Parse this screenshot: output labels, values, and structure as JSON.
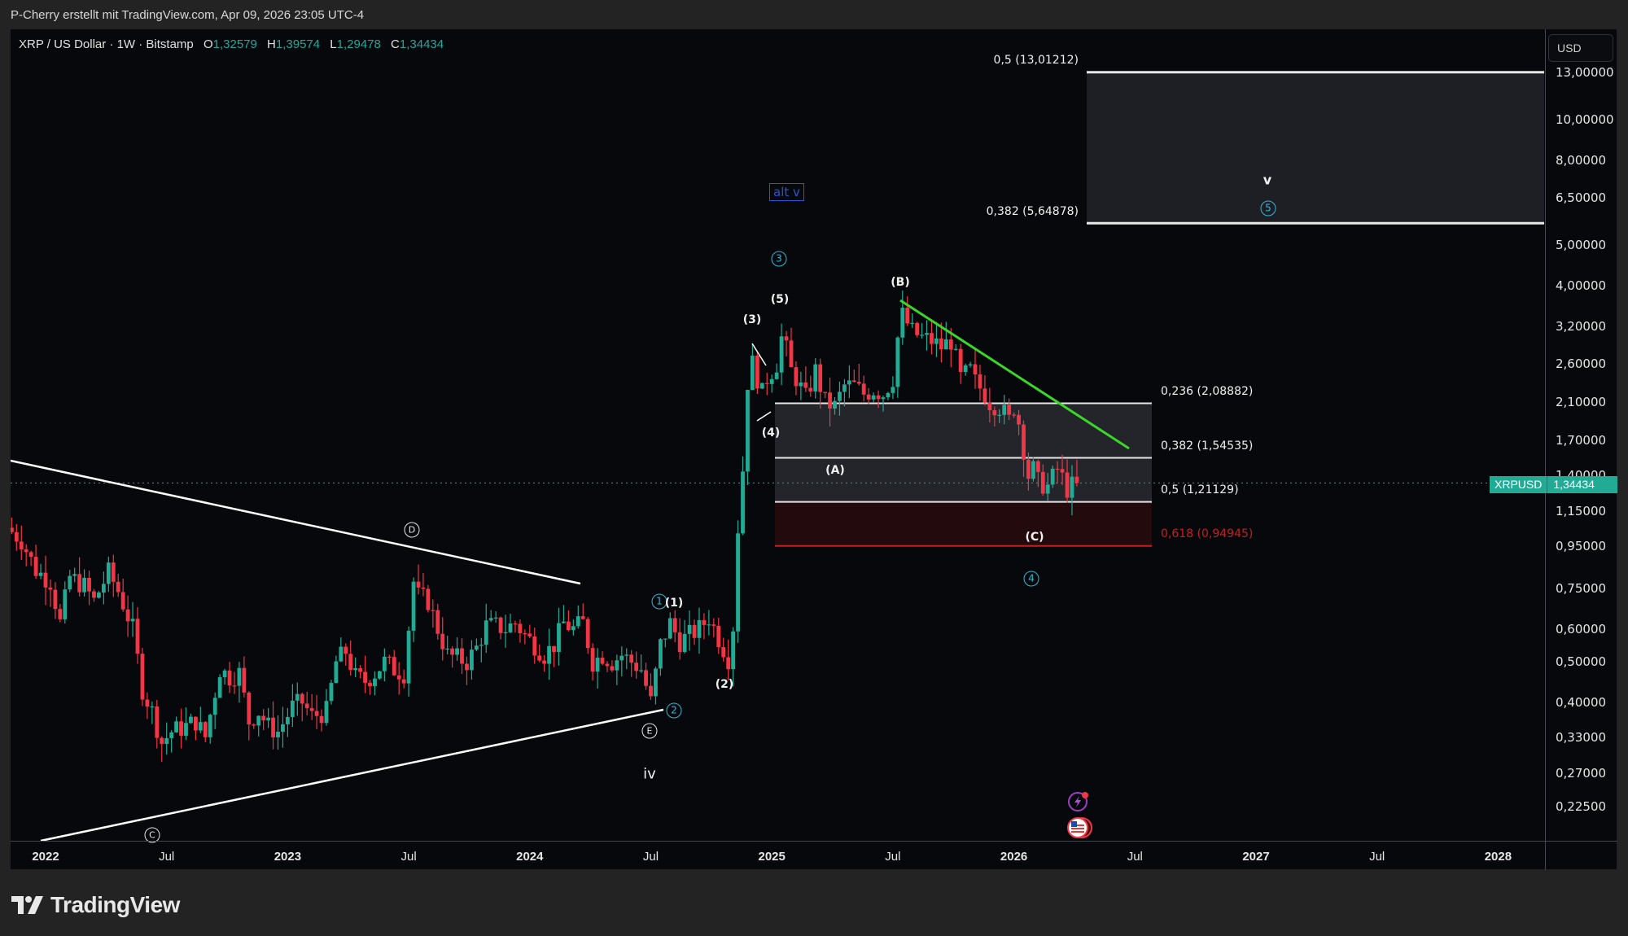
{
  "header": {
    "credit": "P-Cherry erstellt mit TradingView.com, Apr 09, 2026 23:05 UTC-4"
  },
  "legend": {
    "symbol": "XRP / US Dollar · 1W · Bitstamp",
    "o_label": "O",
    "o": "1,32579",
    "h_label": "H",
    "h": "1,39574",
    "l_label": "L",
    "l": "1,29478",
    "c_label": "C",
    "c": "1,34434"
  },
  "currency_button": "USD",
  "price_tag": {
    "symbol": "XRPUSD",
    "value": "1,34434"
  },
  "brand": {
    "name": "TradingView"
  },
  "colors": {
    "up": "#22ab94",
    "down": "#f23645",
    "fib_line": "#e8e8e8",
    "fib_fill": "#2a2b30",
    "fib_red": "#c4201f",
    "trend_green": "#3ad629",
    "wave_cyan": "#31b8d6",
    "alt_blue": "#2a55d8"
  },
  "chart_data": {
    "type": "candlestick",
    "title": "XRP / US Dollar · 1W · Bitstamp",
    "scale": "log",
    "ylim": [
      0.205,
      15.5
    ],
    "y_ticks": [
      "13,00000",
      "10,00000",
      "8,00000",
      "6,50000",
      "5,00000",
      "4,00000",
      "3,20000",
      "2,60000",
      "2,10000",
      "1,70000",
      "1,40000",
      "1,15000",
      "0,95000",
      "0,75000",
      "0,60000",
      "0,50000",
      "0,40000",
      "0,33000",
      "0,27000",
      "0,22500"
    ],
    "y_tick_values": [
      13,
      10,
      8,
      6.5,
      5,
      4,
      3.2,
      2.6,
      2.1,
      1.7,
      1.4,
      1.15,
      0.95,
      0.75,
      0.6,
      0.5,
      0.4,
      0.33,
      0.27,
      0.225
    ],
    "x_ticks": [
      {
        "label": "2022",
        "t": 2022.0,
        "year": true
      },
      {
        "label": "Jul",
        "t": 2022.5,
        "year": false
      },
      {
        "label": "2023",
        "t": 2023.0,
        "year": true
      },
      {
        "label": "Jul",
        "t": 2023.5,
        "year": false
      },
      {
        "label": "2024",
        "t": 2024.0,
        "year": true
      },
      {
        "label": "Jul",
        "t": 2024.5,
        "year": false
      },
      {
        "label": "2025",
        "t": 2025.0,
        "year": true
      },
      {
        "label": "Jul",
        "t": 2025.5,
        "year": false
      },
      {
        "label": "2026",
        "t": 2026.0,
        "year": true
      },
      {
        "label": "Jul",
        "t": 2026.5,
        "year": false
      },
      {
        "label": "2027",
        "t": 2027.0,
        "year": true
      },
      {
        "label": "Jul",
        "t": 2027.5,
        "year": false
      },
      {
        "label": "2028",
        "t": 2028.0,
        "year": true
      }
    ],
    "last_price": 1.34434,
    "close_path": [
      [
        2021.84,
        1.05
      ],
      [
        2021.9,
        0.98
      ],
      [
        2021.96,
        0.83
      ],
      [
        2022.02,
        0.78
      ],
      [
        2022.06,
        0.62
      ],
      [
        2022.1,
        0.8
      ],
      [
        2022.16,
        0.76
      ],
      [
        2022.2,
        0.7
      ],
      [
        2022.26,
        0.82
      ],
      [
        2022.3,
        0.74
      ],
      [
        2022.36,
        0.6
      ],
      [
        2022.4,
        0.43
      ],
      [
        2022.44,
        0.38
      ],
      [
        2022.48,
        0.32
      ],
      [
        2022.52,
        0.34
      ],
      [
        2022.58,
        0.35
      ],
      [
        2022.62,
        0.36
      ],
      [
        2022.66,
        0.33
      ],
      [
        2022.72,
        0.48
      ],
      [
        2022.76,
        0.46
      ],
      [
        2022.8,
        0.47
      ],
      [
        2022.84,
        0.36
      ],
      [
        2022.88,
        0.38
      ],
      [
        2022.92,
        0.35
      ],
      [
        2022.96,
        0.34
      ],
      [
        2023.02,
        0.39
      ],
      [
        2023.06,
        0.4
      ],
      [
        2023.1,
        0.37
      ],
      [
        2023.16,
        0.38
      ],
      [
        2023.2,
        0.5
      ],
      [
        2023.24,
        0.53
      ],
      [
        2023.28,
        0.46
      ],
      [
        2023.32,
        0.45
      ],
      [
        2023.36,
        0.47
      ],
      [
        2023.4,
        0.5
      ],
      [
        2023.44,
        0.48
      ],
      [
        2023.48,
        0.47
      ],
      [
        2023.52,
        0.78
      ],
      [
        2023.54,
        0.72
      ],
      [
        2023.58,
        0.7
      ],
      [
        2023.62,
        0.6
      ],
      [
        2023.66,
        0.52
      ],
      [
        2023.7,
        0.51
      ],
      [
        2023.74,
        0.5
      ],
      [
        2023.78,
        0.54
      ],
      [
        2023.82,
        0.61
      ],
      [
        2023.86,
        0.61
      ],
      [
        2023.9,
        0.6
      ],
      [
        2023.94,
        0.62
      ],
      [
        2023.98,
        0.58
      ],
      [
        2024.02,
        0.55
      ],
      [
        2024.06,
        0.52
      ],
      [
        2024.1,
        0.55
      ],
      [
        2024.14,
        0.62
      ],
      [
        2024.18,
        0.6
      ],
      [
        2024.22,
        0.62
      ],
      [
        2024.26,
        0.5
      ],
      [
        2024.3,
        0.52
      ],
      [
        2024.34,
        0.5
      ],
      [
        2024.38,
        0.52
      ],
      [
        2024.42,
        0.5
      ],
      [
        2024.46,
        0.48
      ],
      [
        2024.5,
        0.4
      ],
      [
        2024.54,
        0.55
      ],
      [
        2024.58,
        0.62
      ],
      [
        2024.62,
        0.56
      ],
      [
        2024.66,
        0.58
      ],
      [
        2024.7,
        0.6
      ],
      [
        2024.74,
        0.64
      ],
      [
        2024.78,
        0.57
      ],
      [
        2024.82,
        0.51
      ],
      [
        2024.84,
        0.61
      ],
      [
        2024.86,
        1.05
      ],
      [
        2024.88,
        1.45
      ],
      [
        2024.9,
        2.35
      ],
      [
        2024.92,
        2.6
      ],
      [
        2024.94,
        2.4
      ],
      [
        2024.96,
        2.2
      ],
      [
        2024.98,
        2.4
      ],
      [
        2025.02,
        2.6
      ],
      [
        2025.04,
        3.0
      ],
      [
        2025.06,
        2.8
      ],
      [
        2025.08,
        2.5
      ],
      [
        2025.1,
        2.4
      ],
      [
        2025.14,
        2.15
      ],
      [
        2025.18,
        2.5
      ],
      [
        2025.22,
        2.1
      ],
      [
        2025.26,
        2.05
      ],
      [
        2025.3,
        2.3
      ],
      [
        2025.34,
        2.3
      ],
      [
        2025.38,
        2.2
      ],
      [
        2025.42,
        2.25
      ],
      [
        2025.46,
        2.2
      ],
      [
        2025.5,
        2.4
      ],
      [
        2025.52,
        3.0
      ],
      [
        2025.54,
        3.4
      ],
      [
        2025.58,
        3.1
      ],
      [
        2025.62,
        3.0
      ],
      [
        2025.66,
        2.95
      ],
      [
        2025.7,
        2.85
      ],
      [
        2025.74,
        2.95
      ],
      [
        2025.78,
        2.4
      ],
      [
        2025.82,
        2.5
      ],
      [
        2025.84,
        2.35
      ],
      [
        2025.88,
        2.2
      ],
      [
        2025.9,
        2.1
      ],
      [
        2025.94,
        2.05
      ],
      [
        2025.98,
        1.9
      ],
      [
        2026.0,
        2.05
      ],
      [
        2026.02,
        1.88
      ],
      [
        2026.06,
        1.4
      ],
      [
        2026.08,
        1.45
      ],
      [
        2026.1,
        1.35
      ],
      [
        2026.14,
        1.32
      ],
      [
        2026.18,
        1.45
      ],
      [
        2026.2,
        1.38
      ],
      [
        2026.22,
        1.3
      ],
      [
        2026.26,
        1.34434
      ]
    ]
  },
  "drawings": {
    "fib_upper": {
      "levels": [
        {
          "label": "0,5 (13,01212)",
          "price": 13.01212
        },
        {
          "label": "0,382 (5,64878)",
          "price": 5.64878
        }
      ]
    },
    "fib_lower": {
      "levels": [
        {
          "label": "0,236 (2,08882)",
          "price": 2.08882,
          "red": false
        },
        {
          "label": "0,382 (1,54535)",
          "price": 1.54535,
          "red": false
        },
        {
          "label": "0,5 (1,21129)",
          "price": 1.21129,
          "red": false
        },
        {
          "label": "0,618 (0,94945)",
          "price": 0.94945,
          "red": true
        }
      ]
    },
    "wave_labels": {
      "D": "D",
      "E": "E",
      "C_circle": "C",
      "p1": "(1)",
      "p2": "(2)",
      "p3": "(3)",
      "p4": "(4)",
      "p5": "(5)",
      "A": "(A)",
      "B": "(B)",
      "C": "(C)",
      "iv": "iv",
      "v": "v",
      "c1": "1",
      "c2": "2",
      "c3": "3",
      "c4": "4",
      "c5": "5",
      "alt_v": "alt v"
    }
  }
}
